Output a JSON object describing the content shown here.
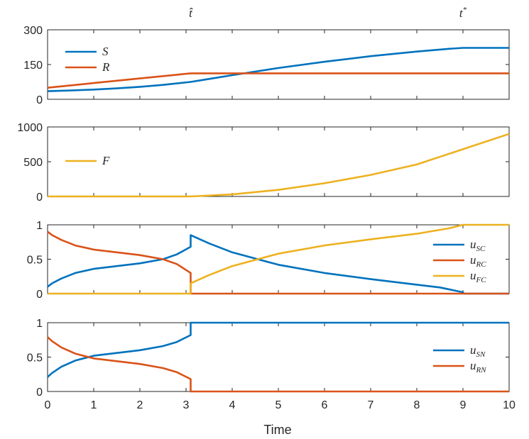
{
  "chart_data": {
    "type": "line",
    "xlabel": "Time",
    "xlim": [
      0,
      10
    ],
    "xticks": [
      0,
      1,
      2,
      3,
      4,
      5,
      6,
      7,
      8,
      9,
      10
    ],
    "markers": [
      {
        "label": "t̂",
        "x": 3.1
      },
      {
        "label": "t*",
        "x": 9
      }
    ],
    "colors": {
      "blue": "#0072BD",
      "orange": "#D95319",
      "yellow": "#EDB120"
    },
    "panels": [
      {
        "id": "populations",
        "ylim": [
          0,
          300
        ],
        "yticks": [
          0,
          150,
          300
        ],
        "legend_position": "left",
        "series": [
          {
            "name": "S",
            "color": "#0072BD",
            "x": [
              0,
              0.5,
              1,
              1.5,
              2,
              2.5,
              3.1,
              3.5,
              4,
              5,
              6,
              7,
              8,
              8.7,
              9,
              10
            ],
            "y": [
              35,
              38,
              42,
              47,
              54,
              62,
              75,
              88,
              104,
              135,
              162,
              186,
              206,
              218,
              222,
              222
            ]
          },
          {
            "name": "R",
            "color": "#D95319",
            "x": [
              0,
              1,
              2,
              3.1,
              10
            ],
            "y": [
              50,
              70,
              90,
              112,
              112
            ]
          }
        ]
      },
      {
        "id": "cumulative",
        "ylim": [
          0,
          1000
        ],
        "yticks": [
          0,
          500,
          1000
        ],
        "legend_position": "left",
        "series": [
          {
            "name": "F",
            "color": "#EDB120",
            "x": [
              0,
              3.1,
              4,
              5,
              6,
              7,
              8,
              9,
              10
            ],
            "y": [
              0,
              0,
              30,
              95,
              190,
              310,
              460,
              680,
              900
            ]
          }
        ]
      },
      {
        "id": "controls-C",
        "ylim": [
          0,
          1
        ],
        "yticks": [
          0,
          0.5,
          1
        ],
        "legend_position": "right",
        "series": [
          {
            "name": "u",
            "sub": "SC",
            "color": "#0072BD",
            "x": [
              0,
              0.1,
              0.3,
              0.6,
              1,
              1.5,
              2,
              2.5,
              2.8,
              3.1,
              3.1,
              3.5,
              4,
              5,
              6,
              7,
              8,
              8.5,
              9,
              9.02,
              10
            ],
            "y": [
              0.1,
              0.15,
              0.22,
              0.3,
              0.36,
              0.4,
              0.44,
              0.5,
              0.57,
              0.68,
              0.85,
              0.73,
              0.6,
              0.42,
              0.3,
              0.21,
              0.13,
              0.09,
              0.02,
              0,
              0
            ]
          },
          {
            "name": "u",
            "sub": "RC",
            "color": "#D95319",
            "x": [
              0,
              0.1,
              0.3,
              0.6,
              1,
              1.5,
              2,
              2.5,
              2.8,
              3.1,
              3.1,
              10
            ],
            "y": [
              0.9,
              0.85,
              0.78,
              0.7,
              0.64,
              0.6,
              0.56,
              0.5,
              0.43,
              0.3,
              0,
              0
            ]
          },
          {
            "name": "u",
            "sub": "FC",
            "color": "#EDB120",
            "x": [
              0,
              3.1,
              3.1,
              3.5,
              4,
              5,
              6,
              7,
              8,
              8.7,
              9,
              10
            ],
            "y": [
              0,
              0,
              0.15,
              0.27,
              0.4,
              0.58,
              0.7,
              0.79,
              0.87,
              0.95,
              1,
              1
            ]
          }
        ]
      },
      {
        "id": "controls-N",
        "ylim": [
          0,
          1
        ],
        "yticks": [
          0,
          0.5,
          1
        ],
        "legend_position": "right",
        "series": [
          {
            "name": "u",
            "sub": "SN",
            "color": "#0072BD",
            "x": [
              0,
              0.1,
              0.3,
              0.6,
              1,
              1.5,
              2,
              2.5,
              2.8,
              3.1,
              3.1,
              10
            ],
            "y": [
              0.21,
              0.27,
              0.36,
              0.45,
              0.52,
              0.56,
              0.6,
              0.66,
              0.72,
              0.82,
              1,
              1
            ]
          },
          {
            "name": "u",
            "sub": "RN",
            "color": "#D95319",
            "x": [
              0,
              0.1,
              0.3,
              0.6,
              1,
              1.5,
              2,
              2.5,
              2.8,
              3.1,
              3.1,
              10
            ],
            "y": [
              0.79,
              0.73,
              0.64,
              0.55,
              0.48,
              0.44,
              0.4,
              0.34,
              0.28,
              0.18,
              0,
              0
            ]
          }
        ]
      }
    ]
  }
}
